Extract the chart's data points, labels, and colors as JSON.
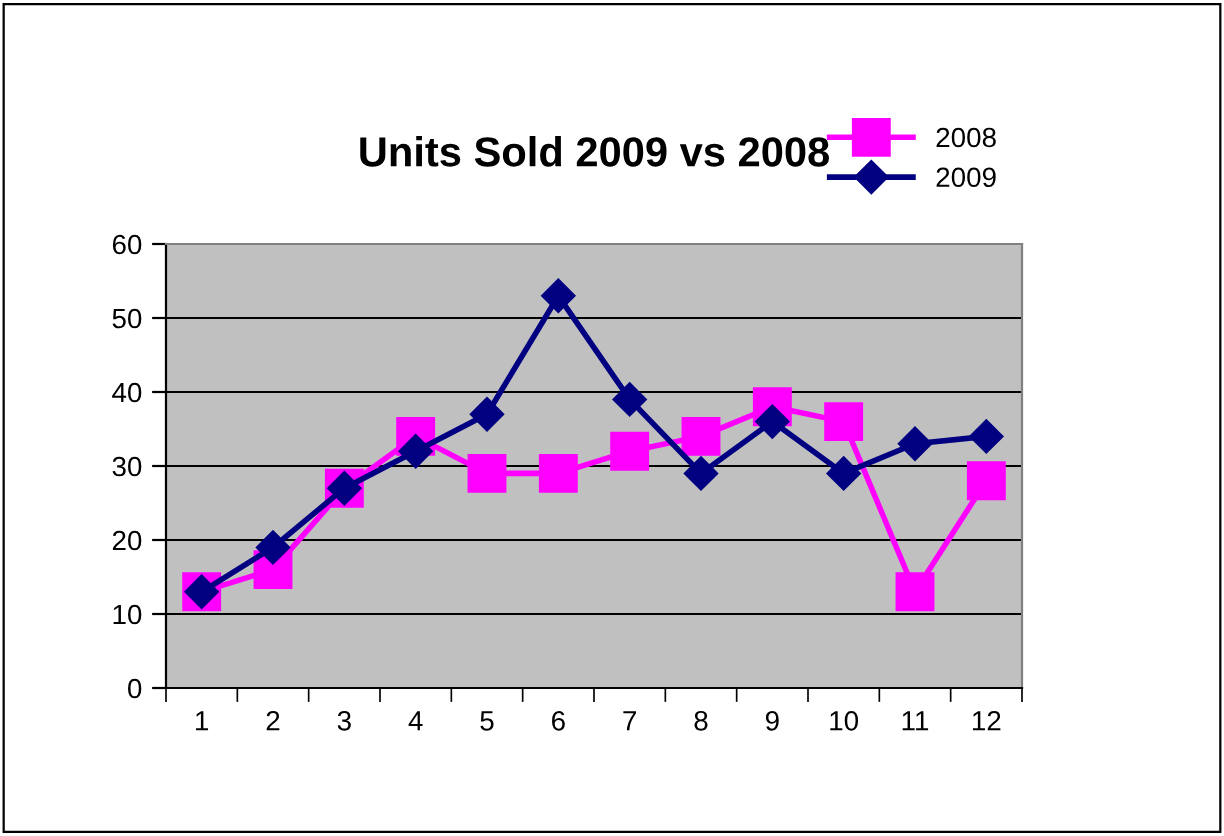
{
  "chart_data": {
    "type": "line",
    "title": "Units Sold 2009 vs 2008",
    "categories": [
      "1",
      "2",
      "3",
      "4",
      "5",
      "6",
      "7",
      "8",
      "9",
      "10",
      "11",
      "12"
    ],
    "series": [
      {
        "name": "2008",
        "color": "#ff00ff",
        "marker": "square",
        "values": [
          13,
          16,
          27,
          34,
          29,
          29,
          32,
          34,
          38,
          36,
          13,
          28
        ]
      },
      {
        "name": "2009",
        "color": "#000080",
        "marker": "diamond",
        "values": [
          13,
          19,
          27,
          32,
          37,
          53,
          39,
          29,
          36,
          29,
          33,
          34
        ]
      }
    ],
    "ylim": [
      0,
      60
    ],
    "yticks": [
      0,
      10,
      20,
      30,
      40,
      50,
      60
    ],
    "grid": "y",
    "legend": "top right",
    "line_style": "solid"
  }
}
